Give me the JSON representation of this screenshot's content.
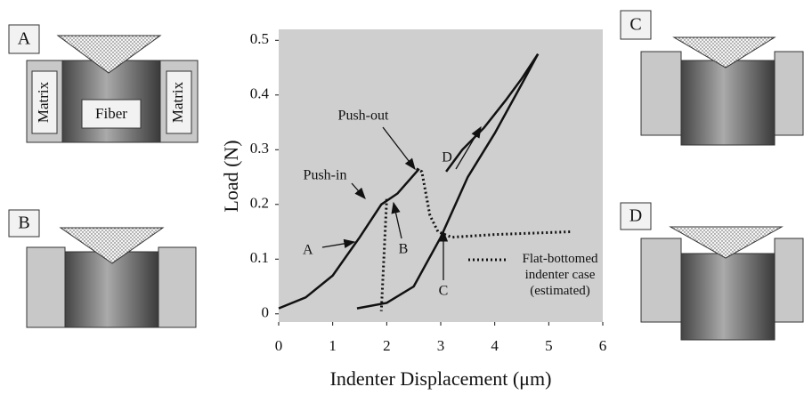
{
  "chart_data": {
    "type": "line",
    "xlabel": "Indenter Displacement (μm)",
    "ylabel": "Load (N)",
    "xlim": [
      0,
      6
    ],
    "ylim": [
      -0.015,
      0.52
    ],
    "xticks": [
      0,
      1,
      2,
      3,
      4,
      5,
      6
    ],
    "yticks": [
      0,
      0.1,
      0.2,
      0.3,
      0.4,
      0.5
    ],
    "background": "#cfcfcf",
    "series": [
      {
        "style": "solid",
        "color": "#111111",
        "x": [
          0,
          0.5,
          1,
          1.5,
          1.9,
          2.2,
          2.6,
          null,
          3.1,
          3.4,
          3.8,
          4.2,
          4.5,
          4.8
        ],
        "values": [
          0.01,
          0.03,
          0.07,
          0.14,
          0.2,
          0.22,
          0.265,
          null,
          0.26,
          0.3,
          0.34,
          0.39,
          0.43,
          0.475
        ]
      },
      {
        "style": "solid",
        "color": "#111111",
        "x": [
          1.45,
          2,
          2.5,
          3,
          3.5,
          4,
          4.5,
          4.8
        ],
        "values": [
          0.01,
          0.02,
          0.05,
          0.14,
          0.25,
          0.33,
          0.42,
          0.475
        ]
      },
      {
        "name": "Flat-bottomed indenter case (estimated)",
        "style": "dotted",
        "color": "#111111",
        "x": [
          2,
          1.9,
          null,
          2.55,
          2.65,
          2.8,
          2.95,
          3.2,
          4,
          5.4
        ],
        "values": [
          0.21,
          0.005,
          null,
          0.265,
          0.26,
          0.18,
          0.15,
          0.14,
          0.145,
          0.15
        ]
      }
    ],
    "annotations": [
      "A",
      "B",
      "C",
      "D",
      "Push-in",
      "Push-out"
    ]
  },
  "diagrams": [
    {
      "label": "A",
      "fiber": "Fiber",
      "matrix_left": "Matrix",
      "matrix_right": "Matrix"
    },
    {
      "label": "B"
    },
    {
      "label": "C"
    },
    {
      "label": "D"
    }
  ]
}
